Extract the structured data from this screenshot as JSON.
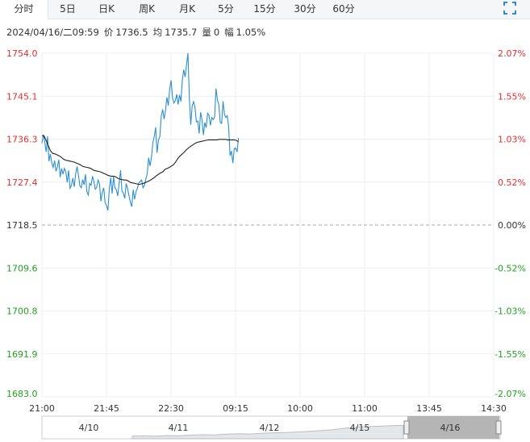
{
  "tabs": [
    {
      "label": "分时",
      "active": true
    },
    {
      "label": "5日",
      "active": false
    },
    {
      "label": "日K",
      "active": false
    },
    {
      "label": "周K",
      "active": false
    },
    {
      "label": "月K",
      "active": false
    },
    {
      "label": "5分",
      "active": false
    },
    {
      "label": "15分",
      "active": false
    },
    {
      "label": "30分",
      "active": false
    },
    {
      "label": "60分",
      "active": false
    }
  ],
  "info": {
    "datetime": "2024/04/16/二09:59",
    "price_label": "价",
    "price": "1736.5",
    "avg_label": "均",
    "avg": "1735.7",
    "volume_label": "量",
    "volume": "0",
    "change_label": "幅",
    "change": "1.05%"
  },
  "colors": {
    "up": "#e03030",
    "down": "#22a022",
    "neutral": "#333333",
    "price_line": "#2b8fd0",
    "avg_line": "#222222",
    "grid": "#eceff2"
  },
  "chart_data": {
    "type": "line",
    "y_left_ticks": [
      "1754.0",
      "1745.1",
      "1736.3",
      "1727.4",
      "1718.5",
      "1709.6",
      "1700.8",
      "1691.9",
      "1683.0"
    ],
    "y_right_ticks": [
      "2.07%",
      "1.55%",
      "1.03%",
      "0.52%",
      "0.00%",
      "-0.52%",
      "-1.03%",
      "-1.55%",
      "-2.07%"
    ],
    "ylim": [
      1683.0,
      1754.0
    ],
    "base_price": 1718.5,
    "x_ticks": [
      "21:00",
      "21:45",
      "22:30",
      "09:15",
      "10:00",
      "11:00",
      "13:45",
      "14:30"
    ],
    "series": [
      {
        "values": [
          1735.4,
          1737.2,
          1735.7,
          1733.6,
          1736.8,
          1731.7,
          1733.2,
          1731.3,
          1730.4,
          1731.8,
          1729.6,
          1730.5,
          1732.0,
          1728.4,
          1730.2,
          1729.0,
          1730.2,
          1729.5,
          1727.3,
          1729.8,
          1726.1,
          1726.7,
          1728.2,
          1726.4,
          1729.0,
          1730.6,
          1728.8,
          1726.6,
          1726.2,
          1727.9,
          1726.8,
          1729.0,
          1725.4,
          1724.7,
          1727.1,
          1726.7,
          1728.6,
          1727.5,
          1725.9,
          1726.3,
          1727.8,
          1727.0,
          1723.4,
          1725.3,
          1726.2,
          1723.1,
          1722.5,
          1721.5,
          1726.0,
          1728.3,
          1725.0,
          1728.5,
          1726.1,
          1725.8,
          1724.5,
          1727.2,
          1729.8,
          1725.5,
          1725.1,
          1724.0,
          1727.1,
          1726.0,
          1724.6,
          1723.2,
          1722.3,
          1725.8,
          1723.8,
          1725.4,
          1726.1,
          1727.2,
          1727.5,
          1727.8,
          1726.2,
          1726.7,
          1728.0,
          1729.1,
          1732.4,
          1730.7,
          1732.5,
          1735.5,
          1736.8,
          1738.7,
          1733.4,
          1736.1,
          1736.8,
          1741.0,
          1742.4,
          1740.4,
          1742.1,
          1744.9,
          1743.2,
          1746.6,
          1748.4,
          1744.8,
          1743.7,
          1744.2,
          1745.5,
          1743.4,
          1745.4,
          1744.0,
          1748.4,
          1750.6,
          1749.1,
          1751.6,
          1754.0,
          1744.9,
          1739.2,
          1743.1,
          1744.0,
          1742.9,
          1739.8,
          1740.0,
          1737.4,
          1741.8,
          1740.3,
          1737.1,
          1739.7,
          1738.6,
          1741.6,
          1741.2,
          1739.1,
          1740.7,
          1740.3,
          1740.8,
          1746.7,
          1744.4,
          1743.4,
          1739.7,
          1739.5,
          1744.1,
          1741.4,
          1740.7,
          1741.1,
          1738.8,
          1732.8,
          1733.8,
          1731.3,
          1734.3,
          1734.4,
          1733.6,
          1736.5
        ]
      },
      {
        "values": [
          1737.0,
          1736.9,
          1735.9,
          1734.8,
          1733.8,
          1733.3,
          1733.2,
          1733.0,
          1732.8,
          1732.5,
          1732.1,
          1731.9,
          1731.8,
          1731.7,
          1731.6,
          1731.5,
          1731.3,
          1731.1,
          1730.9,
          1730.6,
          1730.5,
          1730.4,
          1730.3,
          1730.1,
          1729.8,
          1729.7,
          1729.6,
          1729.5,
          1729.3,
          1729.1,
          1728.9,
          1728.7,
          1728.6,
          1728.6,
          1728.5,
          1728.2,
          1728.0,
          1727.9,
          1727.8,
          1727.8,
          1727.6,
          1727.3,
          1727.2,
          1727.1,
          1727.0,
          1726.9,
          1727.0,
          1727.1,
          1727.3,
          1727.5,
          1727.7,
          1728.0,
          1728.3,
          1728.7,
          1729.0,
          1729.3,
          1729.5,
          1730.0,
          1730.2,
          1730.4,
          1730.7,
          1731.0,
          1731.6,
          1732.3,
          1732.8,
          1733.2,
          1733.6,
          1734.1,
          1734.5,
          1734.8,
          1735.1,
          1735.4,
          1735.6,
          1735.7,
          1735.8,
          1735.9,
          1736.0,
          1736.1,
          1736.1,
          1736.1,
          1736.1,
          1736.1,
          1736.2,
          1736.2,
          1736.2,
          1736.2,
          1736.1,
          1736.1,
          1736.1,
          1736.1,
          1736.0,
          1735.7
        ]
      }
    ],
    "nav": {
      "date_labels": [
        "4/10",
        "4/11",
        "4/12",
        "4/15",
        "4/16"
      ],
      "selected": "4/16",
      "overview_values": [
        1709.0,
        1709.2,
        1709.0,
        1709.5,
        1709.3,
        1710.0,
        1710.3,
        1710.1,
        1710.8,
        1711.2,
        1711.0,
        1711.6,
        1712.1,
        1712.4,
        1712.9,
        1713.5,
        1714.2,
        1715.0,
        1716.5,
        1717.4,
        1718.0,
        1718.4,
        1718.8,
        1719.2
      ]
    }
  }
}
